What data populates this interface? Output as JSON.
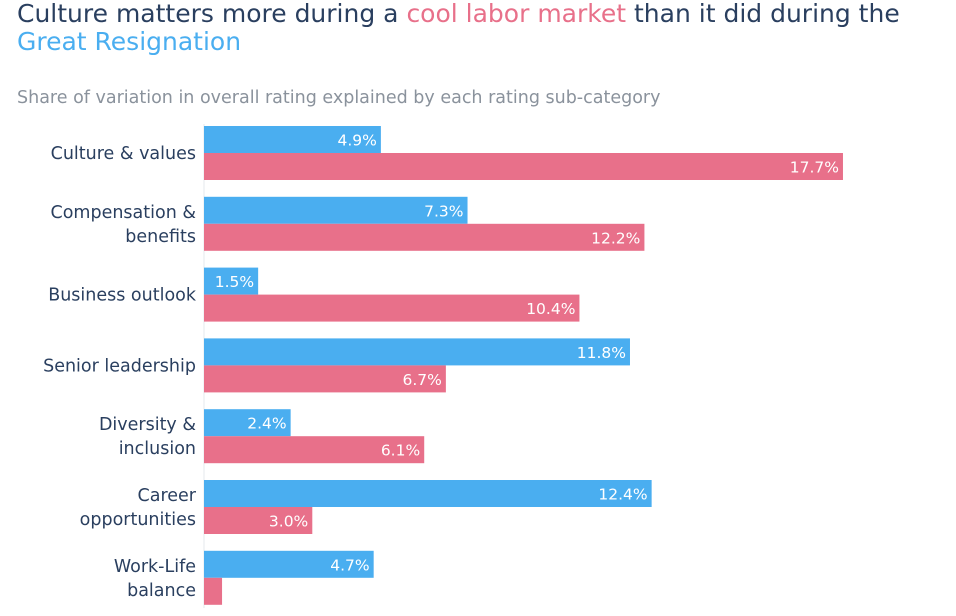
{
  "header": {
    "title_part1": "Culture matters more during a ",
    "title_highlight1": "cool labor market",
    "title_part2": " than it did during the",
    "title_highlight2": "Great Resignation",
    "subtitle": "Share of variation in overall rating explained by each rating sub-category"
  },
  "colors": {
    "great_resignation": "#4aaef0",
    "cool_labor_market": "#e8708a",
    "label_text": "#2a3f5f",
    "bar_text": "#ffffff"
  },
  "chart_data": {
    "type": "bar",
    "orientation": "horizontal",
    "title": "Culture matters more during a cool labor market than it did during the Great Resignation",
    "subtitle": "Share of variation in overall rating explained by each rating sub-category",
    "categories": [
      [
        "Culture & values"
      ],
      [
        "Compensation &",
        "benefits"
      ],
      [
        "Business outlook"
      ],
      [
        "Senior leadership"
      ],
      [
        "Diversity &",
        "inclusion"
      ],
      [
        "Career",
        "opportunities"
      ],
      [
        "Work-Life",
        "balance"
      ]
    ],
    "series": [
      {
        "name": "Great Resignation",
        "color": "#4aaef0",
        "values": [
          4.9,
          7.3,
          1.5,
          11.8,
          2.4,
          12.4,
          4.7
        ],
        "labels": [
          "4.9%",
          "7.3%",
          "1.5%",
          "11.8%",
          "2.4%",
          "12.4%",
          "4.7%"
        ]
      },
      {
        "name": "Cool labor market",
        "color": "#e8708a",
        "values": [
          17.7,
          12.2,
          10.4,
          6.7,
          6.1,
          3.0,
          0.5
        ],
        "labels": [
          "17.7%",
          "12.2%",
          "10.4%",
          "6.7%",
          "6.1%",
          "3.0%",
          ""
        ]
      }
    ],
    "xlim": [
      0,
      20
    ],
    "xlabel": "",
    "ylabel": "",
    "grid": false,
    "legend": "none"
  }
}
